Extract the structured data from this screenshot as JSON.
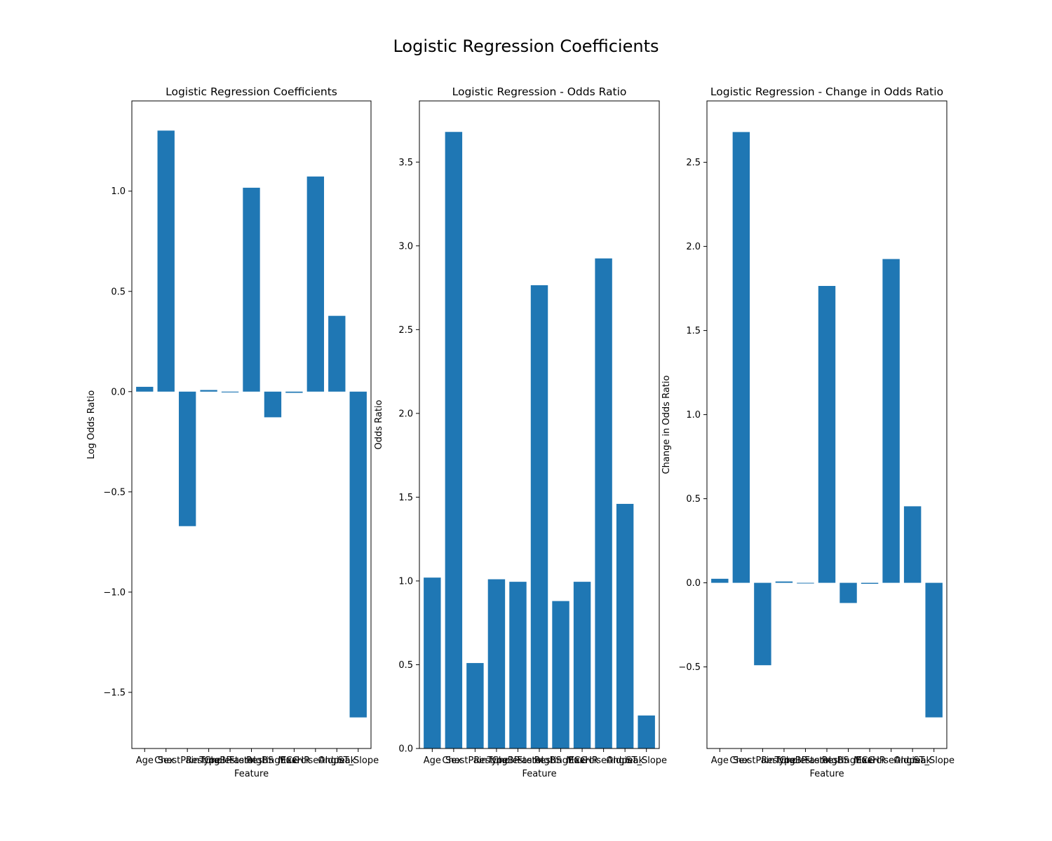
{
  "figure": {
    "suptitle": "Logistic Regression Coefficients"
  },
  "colors": {
    "bar": "#1f77b4",
    "axis": "#000000",
    "background": "#ffffff"
  },
  "chart_data": [
    {
      "type": "bar",
      "title": "Logistic Regression Coefficients",
      "xlabel": "Feature",
      "ylabel": "Log Odds Ratio",
      "categories": [
        "Age",
        "Sex",
        "ChestPainType",
        "RestingBP",
        "Cholesterol",
        "FastingBS",
        "RestingECG",
        "MaxHR",
        "ExerciseAngina",
        "Oldpeak",
        "ST_Slope"
      ],
      "values": [
        0.024,
        1.302,
        -0.671,
        0.008,
        -0.004,
        1.017,
        -0.128,
        -0.006,
        1.073,
        0.378,
        -1.625
      ],
      "ylim": [
        -1.78,
        1.45
      ],
      "yticks": [
        -1.5,
        -1.0,
        -0.5,
        0.0,
        0.5,
        1.0
      ],
      "ytick_labels": [
        "−1.5",
        "−1.0",
        "−0.5",
        "0.0",
        "0.5",
        "1.0"
      ],
      "grid": false,
      "legend": "none"
    },
    {
      "type": "bar",
      "title": "Logistic Regression - Odds Ratio",
      "xlabel": "Feature",
      "ylabel": "Odds Ratio",
      "categories": [
        "Age",
        "Sex",
        "ChestPainType",
        "RestingBP",
        "Cholesterol",
        "FastingBS",
        "RestingECG",
        "MaxHR",
        "ExerciseAngina",
        "Oldpeak",
        "ST_Slope"
      ],
      "values": [
        1.02,
        3.68,
        0.51,
        1.01,
        0.995,
        2.765,
        0.88,
        0.995,
        2.925,
        1.46,
        0.197
      ],
      "ylim": [
        0.0,
        3.865
      ],
      "yticks": [
        0.0,
        0.5,
        1.0,
        1.5,
        2.0,
        2.5,
        3.0,
        3.5
      ],
      "ytick_labels": [
        "0.0",
        "0.5",
        "1.0",
        "1.5",
        "2.0",
        "2.5",
        "3.0",
        "3.5"
      ],
      "grid": false,
      "legend": "none"
    },
    {
      "type": "bar",
      "title": "Logistic Regression - Change in Odds Ratio",
      "xlabel": "Feature",
      "ylabel": "Change in Odds Ratio",
      "categories": [
        "Age",
        "Sex",
        "ChestPainType",
        "RestingBP",
        "Cholesterol",
        "FastingBS",
        "RestingECG",
        "MaxHR",
        "ExerciseAngina",
        "Oldpeak",
        "ST_Slope"
      ],
      "values": [
        0.024,
        2.68,
        -0.49,
        0.008,
        -0.004,
        1.765,
        -0.12,
        -0.006,
        1.925,
        0.455,
        -0.8
      ],
      "ylim": [
        -0.985,
        2.865
      ],
      "yticks": [
        -0.5,
        0.0,
        0.5,
        1.0,
        1.5,
        2.0,
        2.5
      ],
      "ytick_labels": [
        "−0.5",
        "0.0",
        "0.5",
        "1.0",
        "1.5",
        "2.0",
        "2.5"
      ],
      "grid": false,
      "legend": "none"
    }
  ]
}
